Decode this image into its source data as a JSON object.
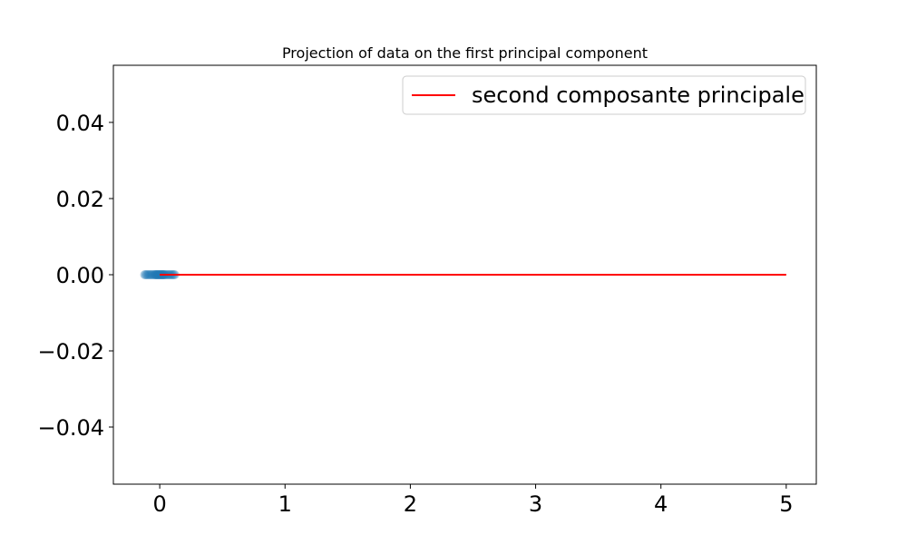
{
  "chart_data": {
    "type": "scatter",
    "title": "Projection of data on the first principal component",
    "xlabel": "",
    "ylabel": "",
    "xlim": [
      -0.37,
      5.24
    ],
    "ylim": [
      -0.055,
      0.055
    ],
    "xticks": [
      0,
      1,
      2,
      3,
      4,
      5
    ],
    "xtick_labels": [
      "0",
      "1",
      "2",
      "3",
      "4",
      "5"
    ],
    "yticks": [
      0.04,
      0.02,
      0.0,
      -0.02,
      -0.04
    ],
    "ytick_labels": [
      "0.04",
      "0.02",
      "0.00",
      "−0.02",
      "−0.04"
    ],
    "grid": false,
    "legend_position": "top-right",
    "series": [
      {
        "kind": "scatter",
        "color": "#1f77b4",
        "alpha": 0.35,
        "x": [
          -0.12,
          -0.11,
          -0.1,
          -0.09,
          -0.08,
          -0.07,
          -0.06,
          -0.05,
          -0.04,
          -0.035,
          -0.03,
          -0.025,
          -0.02,
          -0.015,
          -0.01,
          -0.005,
          0.0,
          0.005,
          0.01,
          0.015,
          0.02,
          0.025,
          0.03,
          0.035,
          0.04,
          0.05,
          0.06,
          0.07,
          0.08,
          0.09,
          0.1,
          0.11,
          0.12
        ],
        "y": [
          0,
          0,
          0,
          0,
          0,
          0,
          0,
          0,
          0,
          0,
          0,
          0,
          0,
          0,
          0,
          0,
          0,
          0,
          0,
          0,
          0,
          0,
          0,
          0,
          0,
          0,
          0,
          0,
          0,
          0,
          0,
          0,
          0
        ]
      },
      {
        "kind": "line",
        "name": "second composante principale",
        "color": "#ff0000",
        "x": [
          0,
          5
        ],
        "y": [
          0,
          0
        ]
      }
    ]
  }
}
